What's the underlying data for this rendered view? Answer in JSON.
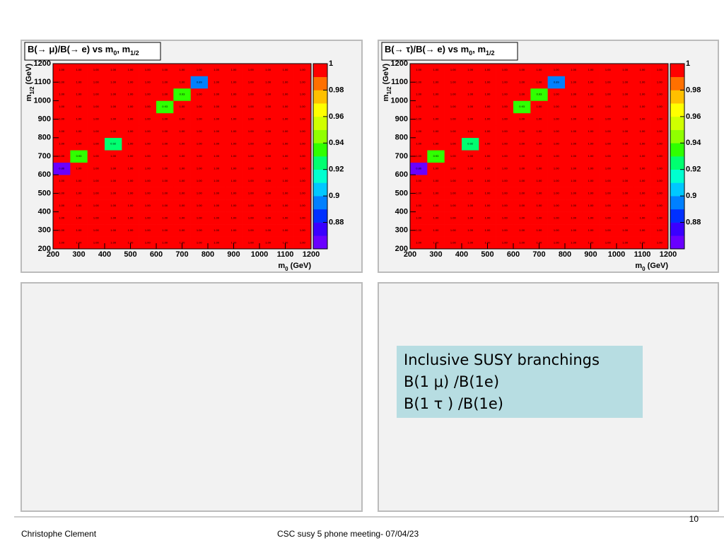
{
  "chart_data": [
    {
      "type": "heatmap",
      "title": [
        "B(→ μ)/B(→ e) vs m",
        "0",
        ", m",
        "1/2"
      ],
      "x_label": [
        "m",
        "0",
        " (GeV)"
      ],
      "y_label": [
        "m",
        "1/2",
        " (GeV)"
      ],
      "xlim": [
        200,
        1200
      ],
      "ylim": [
        200,
        1200
      ],
      "xticks": [
        200,
        300,
        400,
        500,
        600,
        700,
        800,
        900,
        1000,
        1100,
        1200
      ],
      "yticks": [
        200,
        300,
        400,
        500,
        600,
        700,
        800,
        900,
        1000,
        1100,
        1200
      ],
      "zlim": [
        0.86,
        1
      ],
      "zticks": [
        0.88,
        0.9,
        0.92,
        0.94,
        0.96,
        0.98,
        1
      ],
      "palette": [
        "#6a00ff",
        "#3a00ff",
        "#0030ff",
        "#0080ff",
        "#00c8ff",
        "#00ffd0",
        "#00ff70",
        "#30ff00",
        "#90ff00",
        "#d0ff00",
        "#ffff00",
        "#ffc000",
        "#ff7000",
        "#ff0000"
      ],
      "z": [
        [
          1,
          1,
          1,
          1,
          1,
          1,
          1,
          1,
          1,
          1,
          1,
          1,
          1,
          1,
          1
        ],
        [
          1,
          1,
          1,
          1,
          1,
          1,
          1,
          1,
          1,
          1,
          1,
          1,
          1,
          1,
          1
        ],
        [
          1,
          1,
          1,
          1,
          1,
          1,
          1,
          1,
          1,
          1,
          1,
          1,
          1,
          1,
          1
        ],
        [
          1,
          1,
          1,
          1,
          1,
          1,
          1,
          1,
          1,
          1,
          1,
          1,
          1,
          1,
          1
        ],
        [
          1,
          1,
          1,
          1,
          1,
          1,
          1,
          1,
          1,
          1,
          1,
          1,
          1,
          1,
          1
        ],
        [
          1,
          1,
          1,
          1,
          1,
          1,
          1,
          1,
          1,
          1,
          1,
          1,
          1,
          1,
          1
        ],
        [
          0.86,
          1,
          1,
          1,
          1,
          1,
          1,
          1,
          1,
          1,
          1,
          1,
          1,
          1,
          1
        ],
        [
          1,
          0.93,
          1,
          1,
          1,
          1,
          1,
          1,
          1,
          1,
          1,
          1,
          1,
          1,
          1
        ],
        [
          1,
          1,
          1,
          0.92,
          1,
          1,
          1,
          1,
          1,
          1,
          1,
          1,
          1,
          1,
          1
        ],
        [
          1,
          1,
          1,
          1,
          1,
          1,
          1,
          1,
          1,
          1,
          1,
          1,
          1,
          1,
          1
        ],
        [
          1,
          1,
          1,
          1,
          1,
          1,
          1,
          1,
          1,
          1,
          1,
          1,
          1,
          1,
          1
        ],
        [
          1,
          1,
          1,
          1,
          1,
          1,
          0.93,
          1,
          1,
          1,
          1,
          1,
          1,
          1,
          1
        ],
        [
          1,
          1,
          1,
          1,
          1,
          1,
          1,
          0.93,
          1,
          1,
          1,
          1,
          1,
          1,
          1
        ],
        [
          1,
          1,
          1,
          1,
          1,
          1,
          1,
          1,
          0.89,
          1,
          1,
          1,
          1,
          1,
          1
        ],
        [
          1,
          1,
          1,
          1,
          1,
          1,
          1,
          1,
          1,
          1,
          1,
          1,
          1,
          1,
          1
        ]
      ],
      "z_labels": [
        [
          "1.00",
          "1.00",
          "1.00",
          "1.00",
          "1.00",
          "1.00",
          "1.00",
          "1.00",
          "1.00",
          "1.00",
          "1.00",
          "1.00",
          "1.00",
          "1.00",
          "1.00"
        ],
        [
          "1.00",
          "1.00",
          "1.00",
          "1.00",
          "1.00",
          "1.00",
          "1.00",
          "1.00",
          "1.00",
          "1.00",
          "1.00",
          "1.00",
          "1.00",
          "1.00",
          "1.00"
        ],
        [
          "1.00",
          "1.00",
          "1.00",
          "1.00",
          "1.00",
          "1.00",
          "1.00",
          "1.00",
          "1.00",
          "1.00",
          "1.00",
          "1.00",
          "1.00",
          "1.00",
          "1.00"
        ],
        [
          "1.00",
          "1.00",
          "1.00",
          "1.00",
          "1.00",
          "1.00",
          "1.00",
          "1.00",
          "1.00",
          "1.00",
          "1.00",
          "1.00",
          "1.00",
          "1.00",
          "1.00"
        ],
        [
          "1.00",
          "1.00",
          "1.00",
          "1.00",
          "1.00",
          "1.00",
          "1.00",
          "1.00",
          "1.00",
          "1.00",
          "1.00",
          "1.00",
          "1.00",
          "1.00",
          "1.00"
        ],
        [
          "1.00",
          "1.00",
          "1.00",
          "1.00",
          "1.00",
          "1.00",
          "1.00",
          "1.00",
          "1.00",
          "1.00",
          "1.00",
          "1.00",
          "1.00",
          "1.00",
          "1.00"
        ],
        [
          "0.86",
          "1.00",
          "1.00",
          "1.00",
          "1.00",
          "1.00",
          "1.00",
          "1.00",
          "1.00",
          "1.00",
          "1.00",
          "1.00",
          "1.00",
          "1.00",
          "1.00"
        ],
        [
          "1.00",
          "0.93",
          "1.00",
          "1.00",
          "1.00",
          "1.00",
          "1.00",
          "1.00",
          "1.00",
          "1.00",
          "1.00",
          "1.00",
          "1.00",
          "1.00",
          "1.00"
        ],
        [
          "1.00",
          "1.00",
          "1.00",
          "0.92",
          "1.00",
          "1.00",
          "1.00",
          "1.00",
          "1.00",
          "1.00",
          "1.00",
          "1.00",
          "1.00",
          "1.00",
          "1.00"
        ],
        [
          "1.00",
          "1.00",
          "1.00",
          "1.00",
          "1.00",
          "1.00",
          "1.00",
          "1.00",
          "1.00",
          "1.00",
          "1.00",
          "1.00",
          "1.00",
          "1.00",
          "1.00"
        ],
        [
          "1.00",
          "1.00",
          "1.00",
          "1.00",
          "1.00",
          "1.00",
          "1.00",
          "1.00",
          "1.00",
          "1.00",
          "1.00",
          "1.00",
          "1.00",
          "1.00",
          "1.00"
        ],
        [
          "1.00",
          "1.00",
          "1.00",
          "1.00",
          "1.00",
          "1.00",
          "0.93",
          "1.00",
          "1.00",
          "1.00",
          "1.00",
          "1.00",
          "1.00",
          "1.00",
          "1.00"
        ],
        [
          "1.00",
          "1.00",
          "1.00",
          "1.00",
          "1.00",
          "1.00",
          "1.00",
          "0.93",
          "1.00",
          "1.00",
          "1.00",
          "1.00",
          "1.00",
          "1.00",
          "1.00"
        ],
        [
          "1.00",
          "1.00",
          "1.00",
          "1.00",
          "1.00",
          "1.00",
          "1.00",
          "1.00",
          "0.89",
          "1.00",
          "1.00",
          "1.00",
          "1.00",
          "1.00",
          "1.00"
        ],
        [
          "1.00",
          "1.00",
          "1.00",
          "1.00",
          "1.00",
          "1.00",
          "1.00",
          "1.00",
          "1.00",
          "1.00",
          "1.00",
          "1.00",
          "1.00",
          "1.00",
          "1.00"
        ]
      ]
    },
    {
      "type": "heatmap",
      "title": [
        "B(→ τ)/B(→ e) vs m",
        "0",
        ", m",
        "1/2"
      ],
      "x_label": [
        "m",
        "0",
        " (GeV)"
      ],
      "y_label": [
        "m",
        "1/2",
        " (GeV)"
      ],
      "xlim": [
        200,
        1200
      ],
      "ylim": [
        200,
        1200
      ],
      "xticks": [
        200,
        300,
        400,
        500,
        600,
        700,
        800,
        900,
        1000,
        1100,
        1200
      ],
      "yticks": [
        200,
        300,
        400,
        500,
        600,
        700,
        800,
        900,
        1000,
        1100,
        1200
      ],
      "zlim": [
        0.86,
        1
      ],
      "zticks": [
        0.88,
        0.9,
        0.92,
        0.94,
        0.96,
        0.98,
        1
      ],
      "palette": [
        "#6a00ff",
        "#3a00ff",
        "#0030ff",
        "#0080ff",
        "#00c8ff",
        "#00ffd0",
        "#00ff70",
        "#30ff00",
        "#90ff00",
        "#d0ff00",
        "#ffff00",
        "#ffc000",
        "#ff7000",
        "#ff0000"
      ],
      "z": [
        [
          1,
          1,
          1,
          1,
          1,
          1,
          1,
          1,
          1,
          1,
          1,
          1,
          1,
          1,
          1
        ],
        [
          1,
          1,
          1,
          1,
          1,
          1,
          1,
          1,
          1,
          1,
          1,
          1,
          1,
          1,
          1
        ],
        [
          1,
          1,
          1,
          1,
          1,
          1,
          1,
          1,
          1,
          1,
          1,
          1,
          1,
          1,
          1
        ],
        [
          1,
          1,
          1,
          1,
          1,
          1,
          1,
          1,
          1,
          1,
          1,
          1,
          1,
          1,
          1
        ],
        [
          1,
          1,
          1,
          1,
          1,
          1,
          1,
          1,
          1,
          1,
          1,
          1,
          1,
          1,
          1
        ],
        [
          1,
          1,
          1,
          1,
          1,
          1,
          1,
          1,
          1,
          1,
          1,
          1,
          1,
          1,
          1
        ],
        [
          0.86,
          1,
          1,
          1,
          1,
          1,
          1,
          1,
          1,
          1,
          1,
          1,
          1,
          1,
          1
        ],
        [
          1,
          0.93,
          1,
          1,
          1,
          1,
          1,
          1,
          1,
          1,
          1,
          1,
          1,
          1,
          1
        ],
        [
          1,
          1,
          1,
          0.92,
          1,
          1,
          1,
          1,
          1,
          1,
          1,
          1,
          1,
          1,
          1
        ],
        [
          1,
          1,
          1,
          1,
          1,
          1,
          1,
          1,
          1,
          1,
          1,
          1,
          1,
          1,
          1
        ],
        [
          1,
          1,
          1,
          1,
          1,
          1,
          1,
          1,
          1,
          1,
          1,
          1,
          1,
          1,
          1
        ],
        [
          1,
          1,
          1,
          1,
          1,
          1,
          0.93,
          1,
          1,
          1,
          1,
          1,
          1,
          1,
          1
        ],
        [
          1,
          1,
          1,
          1,
          1,
          1,
          1,
          0.93,
          1,
          1,
          1,
          1,
          1,
          1,
          1
        ],
        [
          1,
          1,
          1,
          1,
          1,
          1,
          1,
          1,
          0.89,
          1,
          1,
          1,
          1,
          1,
          1
        ],
        [
          1,
          1,
          1,
          1,
          1,
          1,
          1,
          1,
          1,
          1,
          1,
          1,
          1,
          1,
          1
        ]
      ],
      "z_labels": [
        [
          "1.00",
          "1.00",
          "1.00",
          "1.00",
          "1.00",
          "1.00",
          "1.00",
          "1.00",
          "1.00",
          "1.00",
          "1.00",
          "1.00",
          "1.00",
          "1.00",
          "1.00"
        ],
        [
          "1.00",
          "1.00",
          "1.00",
          "1.00",
          "1.00",
          "1.00",
          "1.00",
          "1.00",
          "1.00",
          "1.00",
          "1.00",
          "1.00",
          "1.00",
          "1.00",
          "1.00"
        ],
        [
          "1.00",
          "1.00",
          "1.00",
          "1.00",
          "1.00",
          "1.00",
          "1.00",
          "1.00",
          "1.00",
          "1.00",
          "1.00",
          "1.00",
          "1.00",
          "1.00",
          "1.00"
        ],
        [
          "1.00",
          "1.00",
          "1.00",
          "1.00",
          "1.00",
          "1.00",
          "1.00",
          "1.00",
          "1.00",
          "1.00",
          "1.00",
          "1.00",
          "1.00",
          "1.00",
          "1.00"
        ],
        [
          "1.00",
          "1.00",
          "1.00",
          "1.00",
          "1.00",
          "1.00",
          "1.00",
          "1.00",
          "1.00",
          "1.00",
          "1.00",
          "1.00",
          "1.00",
          "1.00",
          "1.00"
        ],
        [
          "1.00",
          "1.00",
          "1.00",
          "1.00",
          "1.00",
          "1.00",
          "1.00",
          "1.00",
          "1.00",
          "1.00",
          "1.00",
          "1.00",
          "1.00",
          "1.00",
          "1.00"
        ],
        [
          "0.86",
          "1.00",
          "1.00",
          "1.00",
          "1.00",
          "1.00",
          "1.00",
          "1.00",
          "1.00",
          "1.00",
          "1.00",
          "1.00",
          "1.00",
          "1.00",
          "1.00"
        ],
        [
          "1.00",
          "0.93",
          "1.00",
          "1.00",
          "1.00",
          "1.00",
          "1.00",
          "1.00",
          "1.00",
          "1.00",
          "1.00",
          "1.00",
          "1.00",
          "1.00",
          "1.00"
        ],
        [
          "1.00",
          "1.00",
          "1.00",
          "0.92",
          "1.00",
          "1.00",
          "1.00",
          "1.00",
          "1.00",
          "1.00",
          "1.00",
          "1.00",
          "1.00",
          "1.00",
          "1.00"
        ],
        [
          "1.00",
          "1.00",
          "1.00",
          "1.00",
          "1.00",
          "1.00",
          "1.00",
          "1.00",
          "1.00",
          "1.00",
          "1.00",
          "1.00",
          "1.00",
          "1.00",
          "1.00"
        ],
        [
          "1.00",
          "1.00",
          "1.00",
          "1.00",
          "1.00",
          "1.00",
          "1.00",
          "1.00",
          "1.00",
          "1.00",
          "1.00",
          "1.00",
          "1.00",
          "1.00",
          "1.00"
        ],
        [
          "1.00",
          "1.00",
          "1.00",
          "1.00",
          "1.00",
          "1.00",
          "0.93",
          "1.00",
          "1.00",
          "1.00",
          "1.00",
          "1.00",
          "1.00",
          "1.00",
          "1.00"
        ],
        [
          "1.00",
          "1.00",
          "1.00",
          "1.00",
          "1.00",
          "1.00",
          "1.00",
          "0.93",
          "1.00",
          "1.00",
          "1.00",
          "1.00",
          "1.00",
          "1.00",
          "1.00"
        ],
        [
          "1.00",
          "1.00",
          "1.00",
          "1.00",
          "1.00",
          "1.00",
          "1.00",
          "1.00",
          "0.89",
          "1.00",
          "1.00",
          "1.00",
          "1.00",
          "1.00",
          "1.00"
        ],
        [
          "1.00",
          "1.00",
          "1.00",
          "1.00",
          "1.00",
          "1.00",
          "1.00",
          "1.00",
          "1.00",
          "1.00",
          "1.00",
          "1.00",
          "1.00",
          "1.00",
          "1.00"
        ]
      ]
    }
  ],
  "note_box": {
    "lines": [
      "Inclusive SUSY branchings",
      "B(1 μ) /B(1e)",
      "B(1 τ ) /B(1e)"
    ]
  },
  "footer": {
    "author": "Christophe Clement",
    "meeting": "CSC susy 5 phone meeting-  07/04/23",
    "page": "10"
  }
}
